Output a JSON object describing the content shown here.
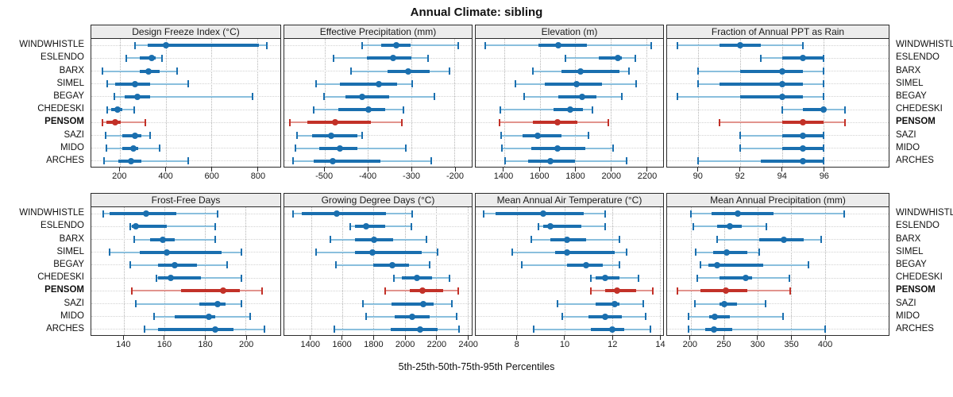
{
  "title": "Annual Climate: sibling",
  "caption": "5th-25th-50th-75th-95th Percentiles",
  "sites": [
    "WINDWHISTLE",
    "ESLENDO",
    "BARX",
    "SIMEL",
    "BEGAY",
    "CHEDESKI",
    "PENSOM",
    "SAZI",
    "MIDO",
    "ARCHES"
  ],
  "highlight_site": "PENSOM",
  "percentiles": [
    5,
    25,
    50,
    75,
    95
  ],
  "colors": {
    "series_main": "#1a6faf",
    "series_light": "#8abfdd",
    "highlight_main": "#c23128",
    "highlight_light": "#e2948e",
    "panel_header_bg": "#ececec",
    "panel_border": "#2b2b2b",
    "grid_dotted": "#b5b5b5",
    "row_guide": "#d2d2d2"
  },
  "chart_data": [
    {
      "type": "interval",
      "row": "top",
      "title": "Design Freeze Index (°C)",
      "xlim": [
        75,
        900
      ],
      "ticks": [
        200,
        400,
        600,
        800
      ],
      "values": [
        [
          265,
          320,
          400,
          805,
          840
        ],
        [
          228,
          285,
          340,
          356,
          383
        ],
        [
          125,
          288,
          325,
          373,
          448
        ],
        [
          146,
          180,
          264,
          330,
          498
        ],
        [
          176,
          220,
          275,
          332,
          780
        ],
        [
          146,
          163,
          190,
          210,
          261
        ],
        [
          122,
          142,
          180,
          203,
          311
        ],
        [
          136,
          210,
          265,
          295,
          332
        ],
        [
          142,
          210,
          258,
          281,
          373
        ],
        [
          129,
          193,
          247,
          295,
          498
        ]
      ]
    },
    {
      "type": "interval",
      "row": "top",
      "title": "Effective Precipitation (mm)",
      "xlim": [
        -593,
        -160
      ],
      "ticks": [
        -500,
        -400,
        -300,
        -200
      ],
      "values": [
        [
          -413,
          -369,
          -335,
          -302,
          -191
        ],
        [
          -480,
          -402,
          -342,
          -300,
          -260
        ],
        [
          -438,
          -355,
          -307,
          -257,
          -211
        ],
        [
          -520,
          -464,
          -375,
          -333,
          -298
        ],
        [
          -502,
          -451,
          -413,
          -351,
          -247
        ],
        [
          -525,
          -469,
          -398,
          -360,
          -318
        ],
        [
          -580,
          -540,
          -476,
          -393,
          -322
        ],
        [
          -564,
          -529,
          -485,
          -425,
          -413
        ],
        [
          -567,
          -512,
          -465,
          -424,
          -313
        ],
        [
          -573,
          -525,
          -481,
          -371,
          -253
        ]
      ]
    },
    {
      "type": "interval",
      "row": "top",
      "title": "Elevation (m)",
      "xlim": [
        1241,
        2293
      ],
      "ticks": [
        1400,
        1600,
        1800,
        2000,
        2200
      ],
      "values": [
        [
          1294,
          1594,
          1705,
          1864,
          2226
        ],
        [
          1745,
          1930,
          2041,
          2060,
          2138
        ],
        [
          1564,
          1723,
          1829,
          2050,
          2103
        ],
        [
          1466,
          1630,
          1807,
          1948,
          2142
        ],
        [
          1515,
          1705,
          1838,
          1917,
          2063
        ],
        [
          1380,
          1680,
          1770,
          1845,
          1895
        ],
        [
          1373,
          1564,
          1702,
          1813,
          1986
        ],
        [
          1382,
          1502,
          1587,
          1724,
          1875
        ],
        [
          1387,
          1551,
          1698,
          1858,
          2013
        ],
        [
          1404,
          1533,
          1658,
          1800,
          2089
        ]
      ]
    },
    {
      "type": "interval",
      "row": "top",
      "title": "Fraction of Annual PPT as Rain",
      "xlim": [
        88.5,
        99.1
      ],
      "ticks": [
        90,
        92,
        94,
        96
      ],
      "values": [
        [
          89,
          91,
          92,
          93,
          95
        ],
        [
          93,
          94,
          95,
          96,
          96
        ],
        [
          90,
          92,
          94,
          95,
          96
        ],
        [
          90,
          91,
          94,
          95,
          96
        ],
        [
          89,
          92,
          94,
          95,
          96
        ],
        [
          94,
          95,
          96,
          96,
          97
        ],
        [
          91,
          94,
          95,
          96,
          97
        ],
        [
          92,
          94,
          95,
          96,
          96
        ],
        [
          92,
          94,
          95,
          96,
          96
        ],
        [
          90,
          93,
          95,
          96,
          96
        ]
      ]
    },
    {
      "type": "interval",
      "row": "bottom",
      "title": "Frost-Free Days",
      "xlim": [
        124,
        217
      ],
      "ticks": [
        140,
        160,
        180,
        200
      ],
      "values": [
        [
          130,
          133,
          151,
          166,
          186
        ],
        [
          143,
          144,
          146,
          161,
          185
        ],
        [
          145,
          153,
          159,
          165,
          185
        ],
        [
          133,
          148,
          161,
          188,
          198
        ],
        [
          143,
          157,
          165,
          176,
          191
        ],
        [
          156,
          157,
          163,
          178,
          198
        ],
        [
          144,
          168,
          189,
          197,
          208
        ],
        [
          146,
          177,
          186,
          190,
          198
        ],
        [
          155,
          165,
          182,
          185,
          202
        ],
        [
          150,
          157,
          185,
          194,
          209
        ]
      ]
    },
    {
      "type": "interval",
      "row": "bottom",
      "title": "Growing Degree Days (°C)",
      "xlim": [
        1230,
        2427
      ],
      "ticks": [
        1400,
        1600,
        1800,
        2000,
        2200,
        2400
      ],
      "values": [
        [
          1285,
          1340,
          1565,
          1880,
          2045
        ],
        [
          1650,
          1680,
          1750,
          1875,
          2040
        ],
        [
          1525,
          1680,
          1805,
          1925,
          2140
        ],
        [
          1435,
          1680,
          1795,
          2110,
          2210
        ],
        [
          1560,
          1800,
          1920,
          2025,
          2160
        ],
        [
          1930,
          1980,
          2075,
          2175,
          2285
        ],
        [
          1875,
          2030,
          2110,
          2245,
          2340
        ],
        [
          1730,
          1915,
          2120,
          2185,
          2300
        ],
        [
          1750,
          1935,
          2045,
          2160,
          2330
        ],
        [
          1550,
          1910,
          2095,
          2210,
          2345
        ]
      ]
    },
    {
      "type": "interval",
      "row": "bottom",
      "title": "Mean Annual Air Temperature (°C)",
      "xlim": [
        6.25,
        14.15
      ],
      "ticks": [
        8,
        10,
        12,
        14
      ],
      "values": [
        [
          6.6,
          7.1,
          9.1,
          10.8,
          11.7
        ],
        [
          8.9,
          9.1,
          9.4,
          10.7,
          11.7
        ],
        [
          8.6,
          9.4,
          10.1,
          10.9,
          12.3
        ],
        [
          7.8,
          9.6,
          10.1,
          12.1,
          12.6
        ],
        [
          8.2,
          10.1,
          10.9,
          11.6,
          12.3
        ],
        [
          11.1,
          11.3,
          11.7,
          12.3,
          13.1
        ],
        [
          11.1,
          11.7,
          12.2,
          13.0,
          13.7
        ],
        [
          9.7,
          11.3,
          12.1,
          12.3,
          13.3
        ],
        [
          9.9,
          11.0,
          11.7,
          12.4,
          13.4
        ],
        [
          8.7,
          11.1,
          12.0,
          12.5,
          13.6
        ]
      ]
    },
    {
      "type": "interval",
      "row": "bottom",
      "title": "Mean Annual Precipitation (mm)",
      "xlim": [
        165,
        495
      ],
      "ticks": [
        200,
        250,
        300,
        350,
        400
      ],
      "values": [
        [
          200,
          231,
          270,
          324,
          429
        ],
        [
          204,
          240,
          258,
          276,
          313
        ],
        [
          240,
          302,
          339,
          369,
          395
        ],
        [
          208,
          234,
          254,
          285,
          302
        ],
        [
          215,
          226,
          240,
          308,
          375
        ],
        [
          210,
          243,
          282,
          292,
          347
        ],
        [
          180,
          215,
          253,
          284,
          348
        ],
        [
          206,
          243,
          250,
          269,
          312
        ],
        [
          197,
          228,
          236,
          259,
          338
        ],
        [
          197,
          222,
          235,
          262,
          400
        ]
      ]
    }
  ]
}
